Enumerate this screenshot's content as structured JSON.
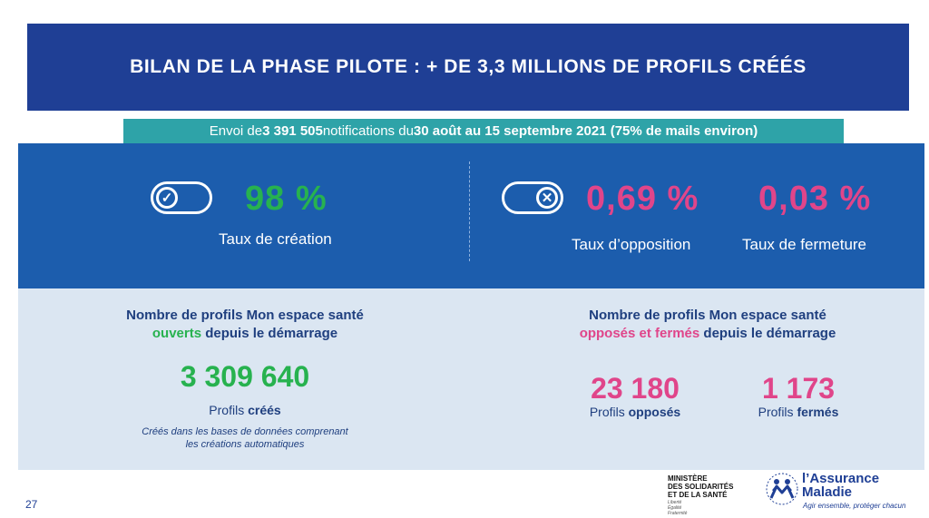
{
  "title": "BILAN DE LA PHASE PILOTE : + DE 3,3 MILLIONS DE PROFILS CRÉÉS",
  "notification": {
    "prefix": "Envoi de ",
    "count": "3 391 505",
    "mid": " notifications du ",
    "period": "30 août au 15 septembre 2021 (75% de mails environ)"
  },
  "rates": {
    "creation": {
      "value": "98 %",
      "label": "Taux de création"
    },
    "opposition": {
      "value": "0,69 %",
      "label": "Taux d’opposition"
    },
    "fermeture": {
      "value": "0,03 %",
      "label": "Taux de fermeture"
    }
  },
  "left_section": {
    "heading_line1": "Nombre de profils Mon espace santé",
    "heading_highlight": "ouverts",
    "heading_rest": " depuis le démarrage",
    "number": "3 309 640",
    "sub_prefix": "Profils ",
    "sub_bold": "créés",
    "note": "Créés dans les bases de données comprenant les créations automatiques"
  },
  "right_section": {
    "heading_line1": "Nombre de profils Mon espace santé",
    "heading_highlight": "opposés et fermés",
    "heading_rest": " depuis le démarrage",
    "opposed": {
      "number": "23 180",
      "sub_prefix": "Profils ",
      "sub_bold": "opposés"
    },
    "closed": {
      "number": "1 173",
      "sub_prefix": "Profils ",
      "sub_bold": "fermés"
    }
  },
  "footer": {
    "page_number": "27",
    "ministry_lines": [
      "MINISTÈRE",
      "DES SOLIDARITÉS",
      "ET DE LA SANTÉ"
    ],
    "ministry_motto": [
      "Liberté",
      "Égalité",
      "Fraternité"
    ],
    "brand_line1": "l’Assurance",
    "brand_line2": "Maladie",
    "brand_tagline": "Agir ensemble, protéger chacun"
  },
  "colors": {
    "banner": "#1f3f95",
    "notification_bar": "#2ea3a8",
    "blue_panel": "#1c5dad",
    "light_panel": "#dbe6f2",
    "green": "#27b24f",
    "pink": "#e0458a"
  },
  "icons": {
    "toggle_on": "toggle-check-icon",
    "toggle_off": "toggle-cross-icon"
  }
}
